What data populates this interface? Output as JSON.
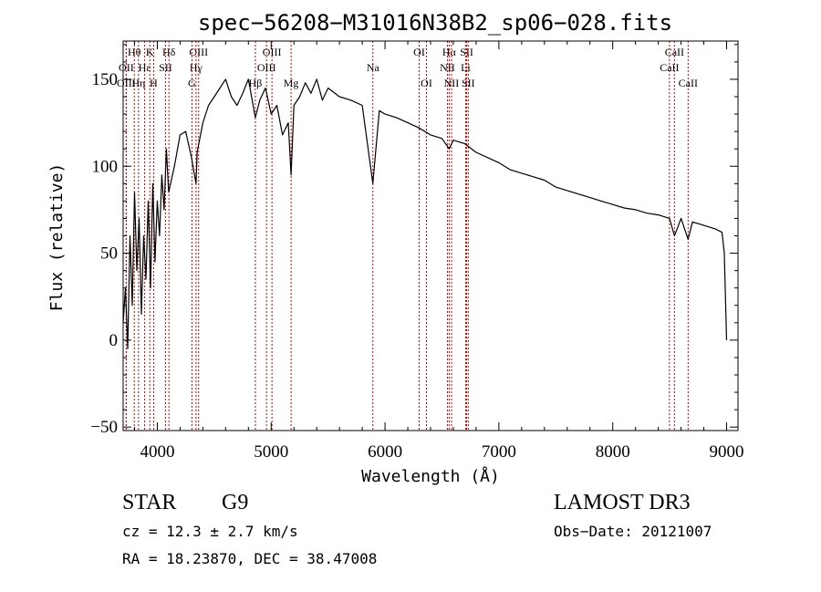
{
  "chart_data": {
    "type": "line",
    "title": "spec−56208−M31016N38B2_sp06−028.fits",
    "xlabel": "Wavelength (Å)",
    "ylabel": "Flux (relative)",
    "xlim": [
      3700,
      9100
    ],
    "ylim": [
      -52,
      172
    ],
    "xticks": [
      4000,
      5000,
      6000,
      7000,
      8000,
      9000
    ],
    "yticks": [
      -50,
      0,
      50,
      100,
      150
    ],
    "ytick_labels": [
      "−50",
      "0",
      "50",
      "100",
      "150"
    ],
    "series": [
      {
        "name": "flux",
        "x": [
          3700,
          3720,
          3740,
          3760,
          3780,
          3800,
          3820,
          3840,
          3860,
          3880,
          3900,
          3920,
          3940,
          3960,
          3980,
          4000,
          4020,
          4040,
          4060,
          4080,
          4100,
          4150,
          4200,
          4250,
          4300,
          4340,
          4350,
          4400,
          4450,
          4500,
          4550,
          4600,
          4650,
          4700,
          4750,
          4800,
          4861,
          4900,
          4950,
          5000,
          5050,
          5100,
          5150,
          5175,
          5200,
          5250,
          5300,
          5350,
          5400,
          5450,
          5500,
          5600,
          5700,
          5800,
          5893,
          5950,
          6000,
          6100,
          6200,
          6300,
          6400,
          6500,
          6563,
          6600,
          6700,
          6800,
          6900,
          7000,
          7100,
          7200,
          7300,
          7400,
          7500,
          7600,
          7700,
          7800,
          7900,
          8000,
          8100,
          8200,
          8300,
          8400,
          8498,
          8542,
          8600,
          8662,
          8700,
          8800,
          8900,
          8960,
          8980,
          9000
        ],
        "y": [
          10,
          30,
          -5,
          60,
          20,
          85,
          40,
          70,
          15,
          60,
          35,
          80,
          30,
          90,
          45,
          80,
          60,
          95,
          75,
          110,
          85,
          100,
          118,
          120,
          105,
          90,
          108,
          125,
          135,
          140,
          145,
          150,
          140,
          135,
          142,
          150,
          128,
          138,
          145,
          130,
          135,
          118,
          125,
          95,
          135,
          140,
          148,
          142,
          150,
          138,
          145,
          140,
          138,
          135,
          90,
          132,
          130,
          128,
          125,
          122,
          118,
          116,
          110,
          115,
          113,
          108,
          105,
          102,
          98,
          96,
          94,
          92,
          88,
          86,
          84,
          82,
          80,
          78,
          76,
          75,
          73,
          72,
          70,
          60,
          70,
          58,
          68,
          66,
          64,
          62,
          50,
          0
        ]
      }
    ],
    "spectral_lines": [
      {
        "label": "Hθ",
        "wavelength": 3798,
        "row": 0
      },
      {
        "label": "OII",
        "wavelength": 3727,
        "row": 1
      },
      {
        "label": "OIII",
        "wavelength": 3727,
        "row": 2
      },
      {
        "label": "K",
        "wavelength": 3934,
        "row": 0
      },
      {
        "label": "Hη",
        "wavelength": 3835,
        "row": 2
      },
      {
        "label": "Hε",
        "wavelength": 3889,
        "row": 1
      },
      {
        "label": "H",
        "wavelength": 3968,
        "row": 2
      },
      {
        "label": "SII",
        "wavelength": 4072,
        "row": 1
      },
      {
        "label": "Hδ",
        "wavelength": 4102,
        "row": 0
      },
      {
        "label": "OIII",
        "wavelength": 4363,
        "row": 0
      },
      {
        "label": "Hγ",
        "wavelength": 4340,
        "row": 1
      },
      {
        "label": "G",
        "wavelength": 4304,
        "row": 2
      },
      {
        "label": "OIII",
        "wavelength": 5007,
        "row": 0
      },
      {
        "label": "OIII",
        "wavelength": 4959,
        "row": 1
      },
      {
        "label": "Hβ",
        "wavelength": 4861,
        "row": 2
      },
      {
        "label": "Mg",
        "wavelength": 5175,
        "row": 2
      },
      {
        "label": "Na",
        "wavelength": 5893,
        "row": 1
      },
      {
        "label": "OI",
        "wavelength": 6300,
        "row": 0
      },
      {
        "label": "OI",
        "wavelength": 6364,
        "row": 2
      },
      {
        "label": "Hα",
        "wavelength": 6563,
        "row": 0
      },
      {
        "label": "SII",
        "wavelength": 6717,
        "row": 0
      },
      {
        "label": "NII",
        "wavelength": 6548,
        "row": 1
      },
      {
        "label": "Li",
        "wavelength": 6708,
        "row": 1
      },
      {
        "label": "NII",
        "wavelength": 6584,
        "row": 2
      },
      {
        "label": "SII",
        "wavelength": 6731,
        "row": 2
      },
      {
        "label": "CaII",
        "wavelength": 8542,
        "row": 0
      },
      {
        "label": "CaII",
        "wavelength": 8498,
        "row": 1
      },
      {
        "label": "CaII",
        "wavelength": 8662,
        "row": 2
      }
    ],
    "colors": {
      "line_marker": "#cc0000",
      "spectrum": "#000000"
    }
  },
  "info": {
    "object_type": "STAR",
    "spectral_class": "G9",
    "survey": "LAMOST DR3",
    "redshift": "cz = 12.3 ± 2.7 km/s",
    "obs_date": "Obs−Date: 20121007",
    "coords": "RA =  18.23870, DEC =  38.47008"
  }
}
